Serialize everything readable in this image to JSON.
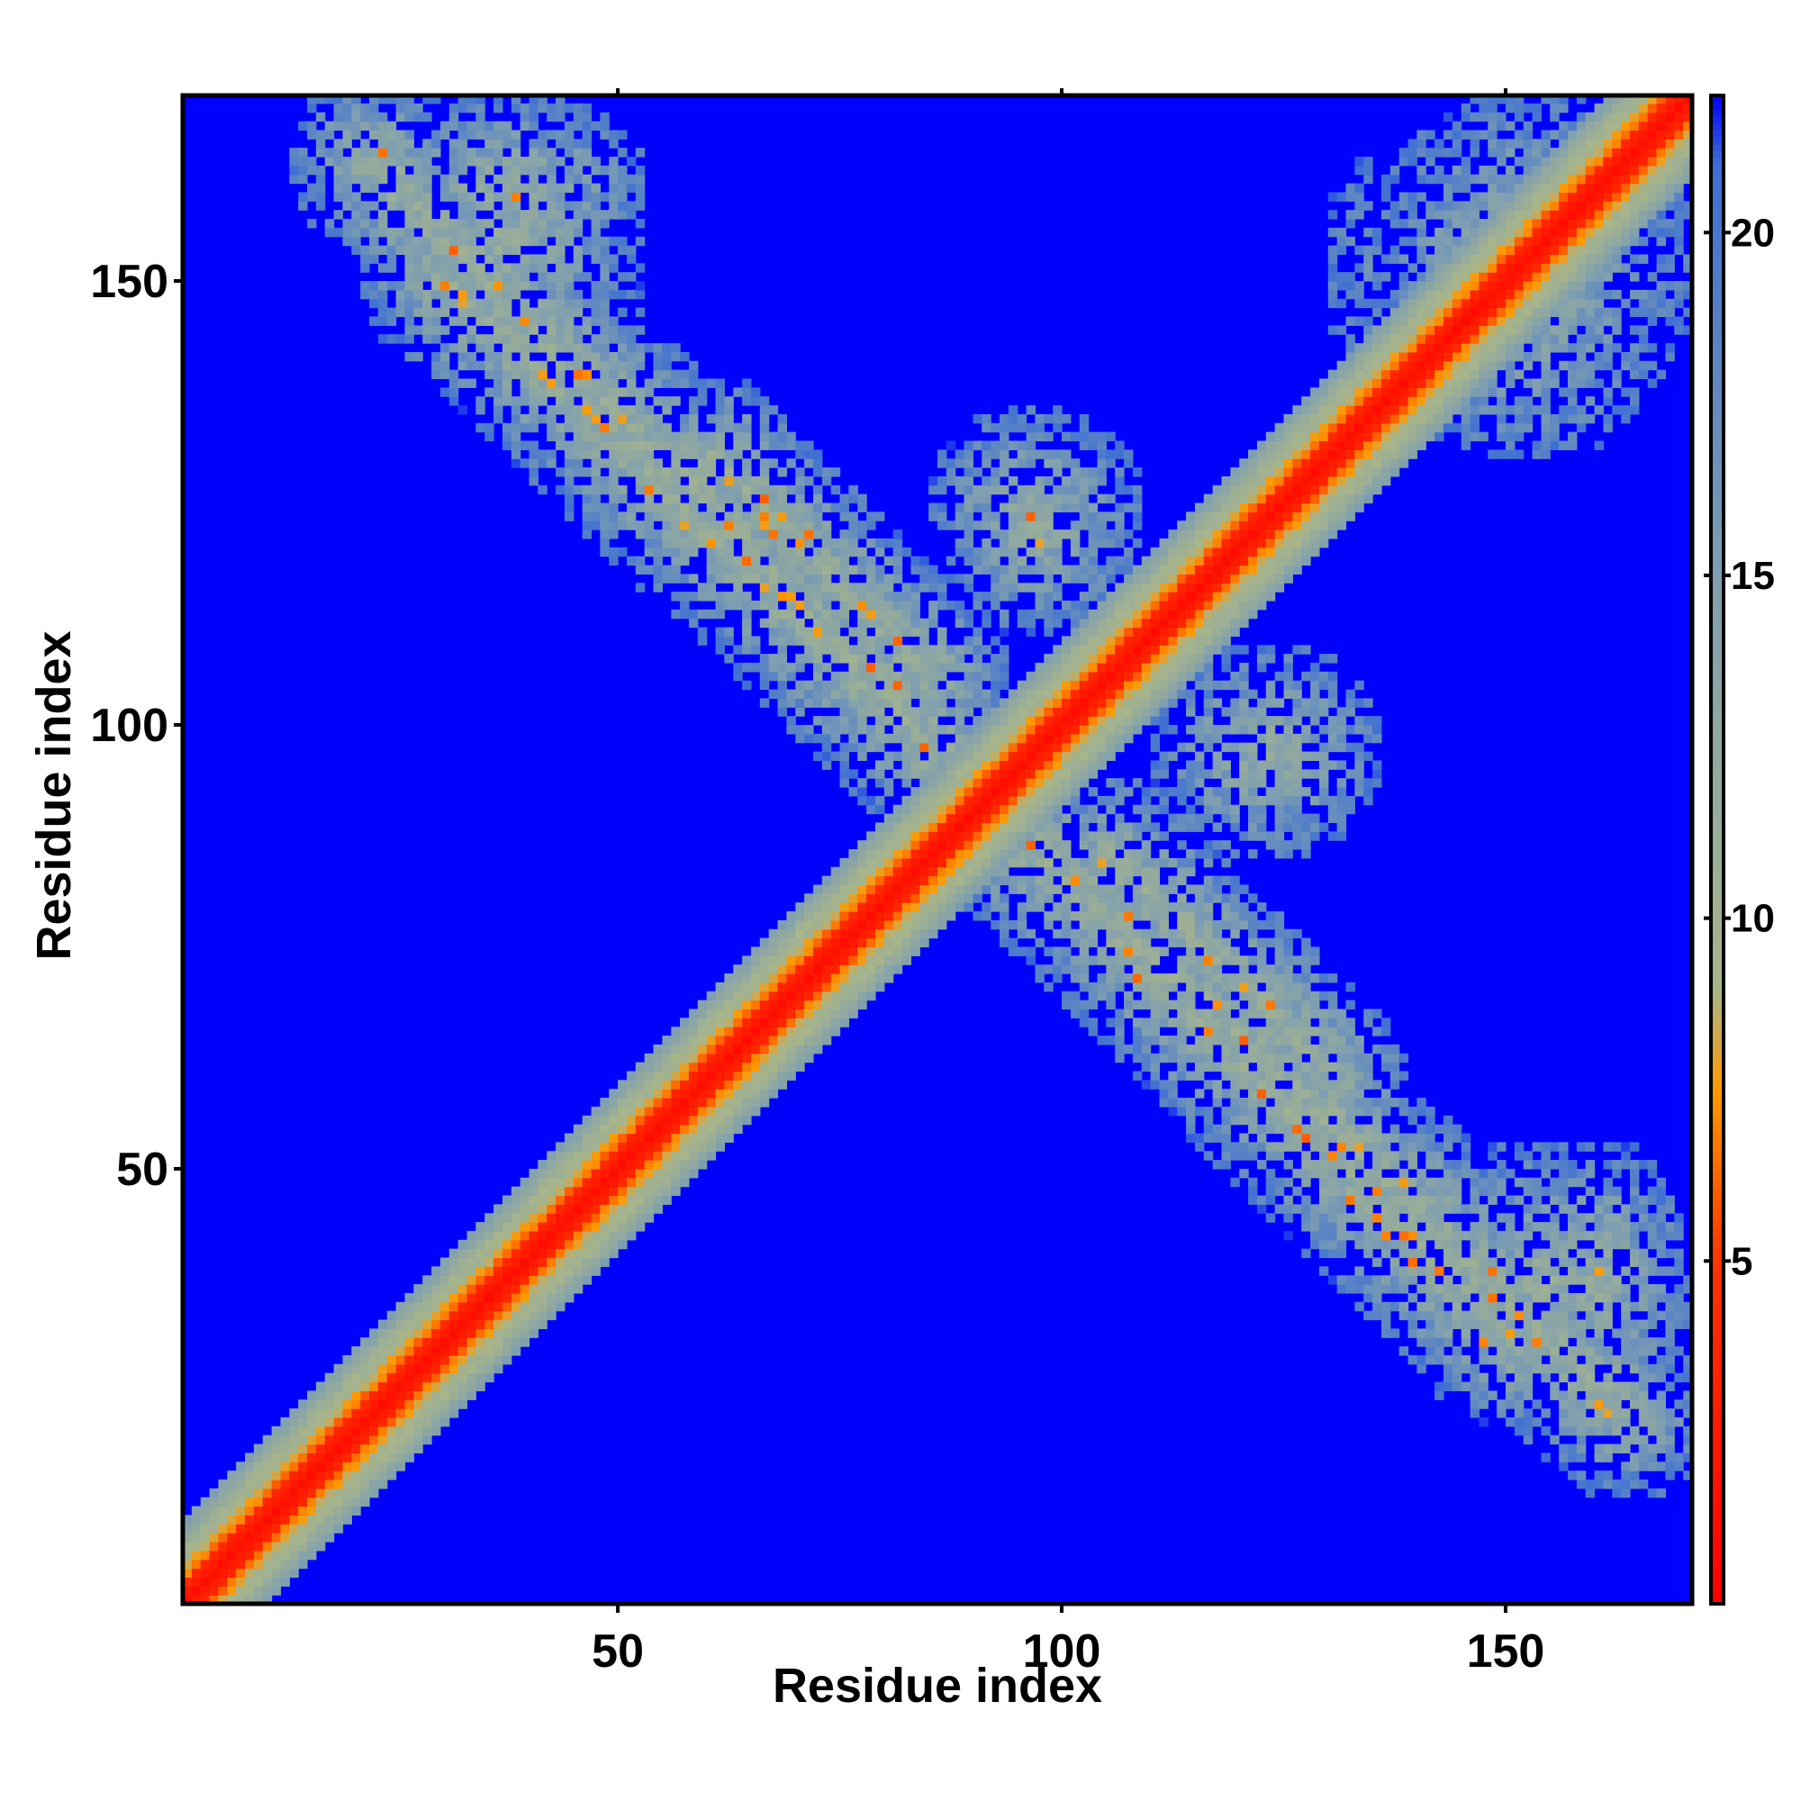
{
  "chart_data": {
    "type": "heatmap",
    "title": "",
    "xlabel": "Residue index",
    "ylabel": "Residue index",
    "xlim": [
      1,
      170
    ],
    "ylim": [
      1,
      170
    ],
    "x_ticks": [
      50,
      100,
      150
    ],
    "y_ticks": [
      50,
      100,
      150
    ],
    "colorbar": {
      "ticks": [
        5,
        10,
        15,
        20
      ],
      "range": [
        0,
        22
      ],
      "stops": [
        {
          "value": 0,
          "color": "#ff0000"
        },
        {
          "value": 5,
          "color": "#ff3300"
        },
        {
          "value": 7.5,
          "color": "#ff9900"
        },
        {
          "value": 9,
          "color": "#a8b58a"
        },
        {
          "value": 15,
          "color": "#7f9fb0"
        },
        {
          "value": 21,
          "color": "#3d6fd4"
        },
        {
          "value": 22,
          "color": "#0000ff"
        }
      ]
    },
    "background_color": "#0000ff",
    "value_meaning": "residue-residue distance; low = red (diagonal), high = blue (background)",
    "features": {
      "main_diagonal": {
        "from": [
          1,
          1
        ],
        "to": [
          170,
          170
        ]
      },
      "antidiagonal_bands": [
        {
          "from": [
            22,
            163
          ],
          "to": [
            150,
            30
          ],
          "width": 10
        },
        {
          "from": [
            55,
            130
          ],
          "to": [
            95,
            85
          ]
        },
        {
          "from": [
            105,
            85
          ],
          "to": [
            130,
            60
          ]
        }
      ],
      "patches": [
        {
          "x": [
            22,
            52
          ],
          "y": [
            150,
            170
          ]
        },
        {
          "x": [
            135,
            168
          ],
          "y": [
            130,
            170
          ]
        },
        {
          "x": [
            140,
            168
          ],
          "y": [
            22,
            52
          ]
        },
        {
          "x": [
            85,
            108
          ],
          "y": [
            110,
            135
          ]
        }
      ]
    }
  }
}
